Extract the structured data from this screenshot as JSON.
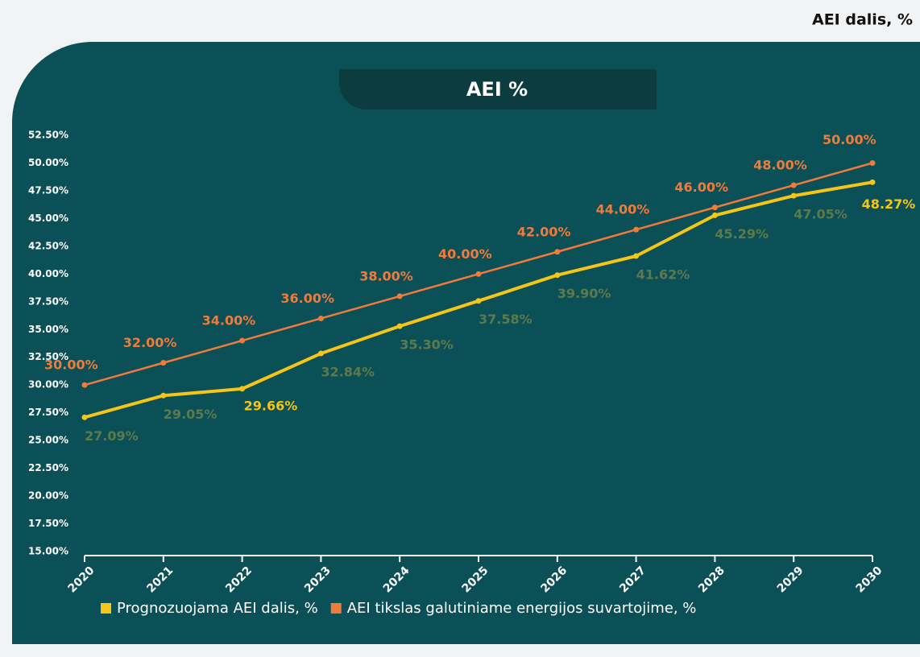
{
  "chart_data": {
    "type": "line",
    "title": "AEI %",
    "subtitle": "AEI dalis, %",
    "categories": [
      "2020",
      "2021",
      "2022",
      "2023",
      "2024",
      "2025",
      "2026",
      "2027",
      "2028",
      "2029",
      "2030"
    ],
    "series": [
      {
        "name": "Prognozuojama AEI dalis, %",
        "color": "#f5c518",
        "values": [
          27.09,
          29.05,
          29.66,
          32.84,
          35.3,
          37.58,
          39.9,
          41.62,
          45.29,
          47.05,
          48.27
        ],
        "value_labels": [
          "27.09%",
          "29.05%",
          "29.66%",
          "32.84%",
          "35.30%",
          "37.58%",
          "39.90%",
          "41.62%",
          "45.29%",
          "47.05%",
          "48.27%"
        ]
      },
      {
        "name": "AEI tikslas galutiniame energijos suvartojime, %",
        "color": "#f07b3a",
        "values": [
          30,
          32,
          34,
          36,
          38,
          40,
          42,
          44,
          46,
          48,
          50
        ],
        "value_labels": [
          "30.00%",
          "32.00%",
          "34.00%",
          "36.00%",
          "38.00%",
          "40.00%",
          "42.00%",
          "44.00%",
          "46.00%",
          "48.00%",
          "50.00%"
        ]
      }
    ],
    "ylim": [
      15,
      52.5
    ],
    "yticks": [
      {
        "value": 15,
        "label": "15.00%"
      },
      {
        "value": 17.5,
        "label": "17.50%"
      },
      {
        "value": 20,
        "label": "20.00%"
      },
      {
        "value": 22.5,
        "label": "22.50%"
      },
      {
        "value": 25,
        "label": "25.00%"
      },
      {
        "value": 27.5,
        "label": "27.50%"
      },
      {
        "value": 30,
        "label": "30.00%"
      },
      {
        "value": 32.5,
        "label": "32.50%"
      },
      {
        "value": 35,
        "label": "35.00%"
      },
      {
        "value": 37.5,
        "label": "37.50%"
      },
      {
        "value": 40,
        "label": "40.00%"
      },
      {
        "value": 42.5,
        "label": "42.50%"
      },
      {
        "value": 45,
        "label": "45.00%"
      },
      {
        "value": 47.5,
        "label": "47.50%"
      },
      {
        "value": 50,
        "label": "50.00%"
      },
      {
        "value": 52.5,
        "label": "52.50%"
      }
    ]
  }
}
